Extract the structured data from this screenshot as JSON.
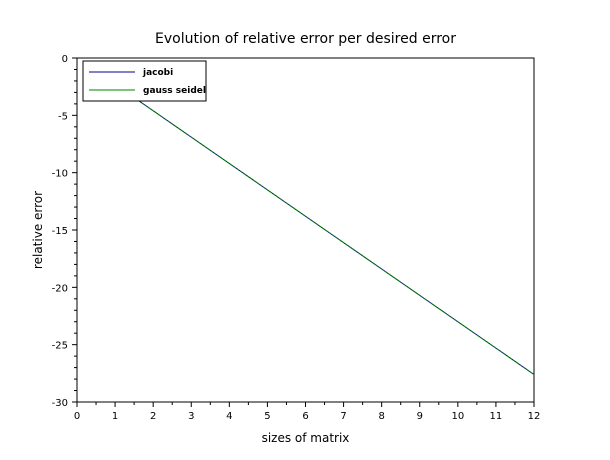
{
  "chart_data": {
    "type": "line",
    "title": "Evolution of relative error per desired error",
    "xlabel": "sizes of matrix",
    "ylabel": "relative error",
    "xlim": [
      0,
      12
    ],
    "ylim": [
      -30,
      0
    ],
    "xticks": [
      "0",
      "1",
      "2",
      "3",
      "4",
      "5",
      "6",
      "7",
      "8",
      "9",
      "10",
      "11",
      "12"
    ],
    "yticks": [
      "0",
      "-5",
      "-10",
      "-15",
      "-20",
      "-25",
      "-30"
    ],
    "grid": false,
    "legend_position": "top-left",
    "series": [
      {
        "name": "jacobi",
        "color": "#00008b",
        "x": [
          1,
          2,
          3,
          4,
          5,
          6,
          7,
          8,
          9,
          10,
          11,
          12
        ],
        "y": [
          -2.3,
          -4.6,
          -6.9,
          -9.2,
          -11.5,
          -13.8,
          -16.1,
          -18.4,
          -20.7,
          -23.0,
          -25.3,
          -27.6
        ]
      },
      {
        "name": "gauss seidel",
        "color": "#008000",
        "x": [
          1,
          2,
          3,
          4,
          5,
          6,
          7,
          8,
          9,
          10,
          11,
          12
        ],
        "y": [
          -2.3,
          -4.6,
          -6.9,
          -9.2,
          -11.5,
          -13.8,
          -16.1,
          -18.4,
          -20.7,
          -23.0,
          -25.3,
          -27.6
        ]
      }
    ]
  }
}
